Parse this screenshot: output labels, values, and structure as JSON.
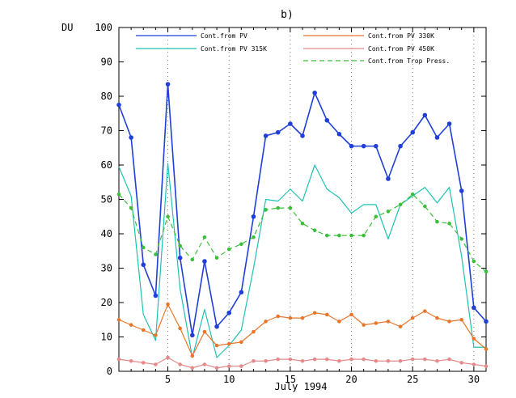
{
  "chart_data": {
    "type": "line",
    "title": "b)",
    "xlabel": "July 1994",
    "ylabel": "DU",
    "xlim": [
      1,
      31
    ],
    "ylim": [
      0,
      100
    ],
    "x_ticks": [
      5,
      10,
      15,
      20,
      25,
      30
    ],
    "y_ticks": [
      0,
      10,
      20,
      30,
      40,
      50,
      60,
      70,
      80,
      90,
      100
    ],
    "grid": "dotted at x ticks",
    "legend_placement": "top, two columns",
    "x": [
      1,
      2,
      3,
      4,
      5,
      6,
      7,
      8,
      9,
      10,
      11,
      12,
      13,
      14,
      15,
      16,
      17,
      18,
      19,
      20,
      21,
      22,
      23,
      24,
      25,
      26,
      27,
      28,
      29,
      30,
      31
    ],
    "series": [
      {
        "name": "Cont.from PV",
        "color": "#1f3fd8",
        "style": "solid-thick-markers",
        "values": [
          77.5,
          68,
          31,
          22,
          83.5,
          33,
          10.5,
          32,
          13,
          17,
          23,
          45,
          68.5,
          69.5,
          72,
          68.5,
          81,
          73,
          69,
          65.5,
          65.5,
          65.5,
          56,
          65.5,
          69.5,
          74.5,
          68,
          72,
          52.5,
          18.5,
          14.5
        ]
      },
      {
        "name": "Cont.from PV 315K",
        "color": "#1ec2b4",
        "style": "solid",
        "values": [
          59.5,
          51,
          16.5,
          9,
          60.5,
          24,
          4,
          18,
          4,
          7.5,
          12,
          30,
          50,
          49.5,
          53,
          49.5,
          60,
          53,
          50.5,
          46,
          48.5,
          48.5,
          38.5,
          48.5,
          51,
          53.5,
          49,
          53.5,
          33.5,
          7,
          7
        ]
      },
      {
        "name": "Cont.from PV 330K",
        "color": "#e8762b",
        "style": "solid-markers",
        "values": [
          15,
          13.5,
          12,
          10.5,
          19.5,
          12.5,
          4.5,
          11.5,
          7.5,
          8,
          8.5,
          11.5,
          14.5,
          16,
          15.5,
          15.5,
          17,
          16.5,
          14.5,
          16.5,
          13.5,
          14,
          14.5,
          13,
          15.5,
          17.5,
          15.5,
          14.5,
          15,
          9.5,
          6.5
        ]
      },
      {
        "name": "Cont.from PV 450K",
        "color": "#e58a8a",
        "style": "solid-markers",
        "values": [
          3.5,
          3,
          2.5,
          2,
          4,
          2,
          1,
          2,
          1,
          1.5,
          1.5,
          3,
          3,
          3.5,
          3.5,
          3,
          3.5,
          3.5,
          3,
          3.5,
          3.5,
          3,
          3,
          3,
          3.5,
          3.5,
          3,
          3.5,
          2.5,
          2,
          1.5
        ]
      },
      {
        "name": "Cont.from Trop Press.",
        "color": "#3bbf3b",
        "style": "dashed-markers",
        "values": [
          51.5,
          47.5,
          36,
          34,
          45,
          36.5,
          32.5,
          39,
          33,
          35.5,
          37,
          39,
          47,
          47.5,
          47.5,
          43,
          41,
          39.5,
          39.5,
          39.5,
          39.5,
          45,
          46.5,
          48.5,
          51.5,
          48,
          43.5,
          43,
          38.5,
          32,
          29
        ]
      }
    ]
  }
}
